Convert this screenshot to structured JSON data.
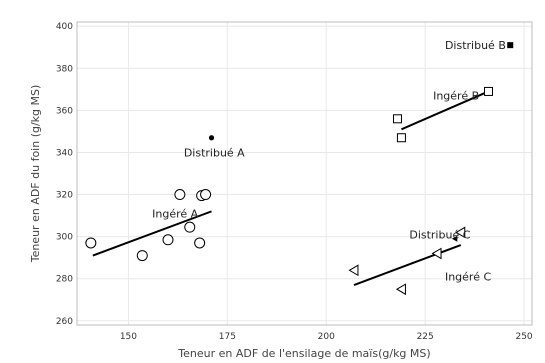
{
  "chart_data": {
    "type": "scatter",
    "xlabel": "Teneur en ADF de l'ensilage de maïs(g/kg MS)",
    "ylabel": "Teneur en ADF du foin (g/kg MS)",
    "xlim": [
      137,
      252
    ],
    "ylim": [
      258,
      402
    ],
    "xticks": [
      150,
      175,
      200,
      225,
      250
    ],
    "yticks": [
      260,
      280,
      300,
      320,
      340,
      360,
      380,
      400
    ],
    "grid": true,
    "series": [
      {
        "marker": "circle-open",
        "color": "#000000",
        "points": [
          [
            140.5,
            297
          ],
          [
            153.5,
            291
          ],
          [
            160,
            298.5
          ],
          [
            163,
            320
          ],
          [
            165.5,
            304.5
          ],
          [
            168,
            297
          ],
          [
            168.5,
            319.5
          ],
          [
            169.5,
            320
          ]
        ]
      },
      {
        "marker": "circle-filled",
        "color": "#000000",
        "points": [
          [
            171,
            347
          ]
        ]
      },
      {
        "marker": "square-open",
        "color": "#000000",
        "points": [
          [
            218,
            356
          ],
          [
            219,
            347
          ],
          [
            241,
            369
          ]
        ]
      },
      {
        "marker": "square-filled",
        "color": "#000000",
        "points": [
          [
            246.5,
            391
          ]
        ]
      },
      {
        "marker": "triangle-open",
        "color": "#000000",
        "points": [
          [
            207,
            284
          ],
          [
            219,
            275
          ],
          [
            228,
            292
          ],
          [
            234,
            302
          ]
        ]
      },
      {
        "marker": "triangle-filled",
        "color": "#000000",
        "points": [
          [
            232.5,
            299
          ]
        ]
      }
    ],
    "lines": [
      {
        "from": [
          141,
          291
        ],
        "to": [
          171,
          312
        ]
      },
      {
        "from": [
          219,
          351
        ],
        "to": [
          241,
          369
        ]
      },
      {
        "from": [
          207,
          277
        ],
        "to": [
          234,
          296
        ]
      }
    ],
    "annotations": [
      {
        "text": "Distribué B",
        "x": 230,
        "y": 391
      },
      {
        "text": "Ingéré B",
        "x": 227,
        "y": 367
      },
      {
        "text": "Distribué A",
        "x": 164,
        "y": 340
      },
      {
        "text": "Ingéré A",
        "x": 156,
        "y": 311
      },
      {
        "text": "Distribué C",
        "x": 221,
        "y": 301
      },
      {
        "text": "Ingéré C",
        "x": 230,
        "y": 281
      }
    ]
  }
}
